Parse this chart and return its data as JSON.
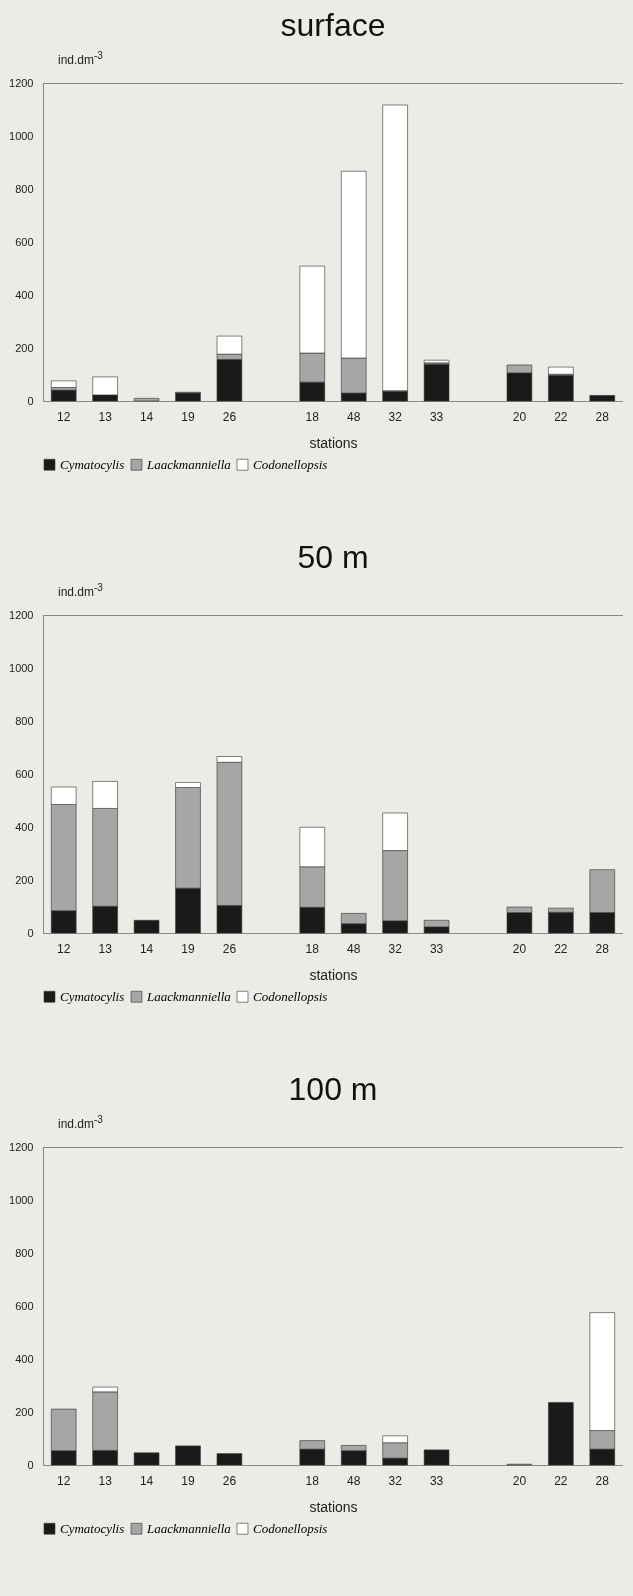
{
  "chart_data": [
    {
      "type": "bar",
      "title": "surface",
      "xlabel": "stations",
      "ylabel": "ind.dm$^{-3}$",
      "stacked": true,
      "legend": "bottom",
      "ylim": [
        0,
        1200
      ],
      "yticks": [
        0,
        200,
        400,
        600,
        800,
        1000,
        1200
      ],
      "categories": [
        "12",
        "13",
        "14",
        "19",
        "26",
        null,
        "18",
        "48",
        "32",
        "33",
        null,
        "20",
        "22",
        "28"
      ],
      "series": [
        {
          "name": "Cymatocylis",
          "color": "#1a1a1a",
          "values": [
            41,
            23,
            null,
            30,
            157,
            null,
            71,
            30,
            36,
            139,
            null,
            106,
            97,
            21
          ]
        },
        {
          "name": "Laackmanniella",
          "color": "#a6a6a6",
          "values": [
            10,
            null,
            10,
            3,
            20,
            null,
            110,
            132,
            3,
            5,
            null,
            30,
            4,
            null
          ]
        },
        {
          "name": "Codonellopsis",
          "color": "#ffffff",
          "values": [
            25,
            68,
            null,
            null,
            68,
            null,
            328,
            705,
            1078,
            10,
            null,
            null,
            27,
            null
          ]
        }
      ]
    },
    {
      "type": "bar",
      "title": "50 m",
      "xlabel": "stations",
      "ylabel": "ind.dm$^{-3}$",
      "stacked": true,
      "legend": "bottom",
      "ylim": [
        0,
        1200
      ],
      "yticks": [
        0,
        200,
        400,
        600,
        800,
        1000,
        1200
      ],
      "categories": [
        "12",
        "13",
        "14",
        "19",
        "26",
        null,
        "18",
        "48",
        "32",
        "33",
        null,
        "20",
        "22",
        "28"
      ],
      "series": [
        {
          "name": "Cymatocylis",
          "color": "#1a1a1a",
          "values": [
            84,
            101,
            48,
            169,
            104,
            null,
            97,
            35,
            46,
            23,
            null,
            77,
            78,
            77
          ]
        },
        {
          "name": "Laackmanniella",
          "color": "#a6a6a6",
          "values": [
            401,
            369,
            null,
            380,
            540,
            null,
            153,
            39,
            265,
            25,
            null,
            21,
            16,
            162
          ]
        },
        {
          "name": "Codonellopsis",
          "color": "#ffffff",
          "values": [
            66,
            102,
            null,
            19,
            22,
            null,
            149,
            null,
            142,
            null,
            null,
            null,
            null,
            null
          ]
        }
      ]
    },
    {
      "type": "bar",
      "title": "100 m",
      "xlabel": "stations",
      "ylabel": "ind.dm$^{-3}$",
      "stacked": true,
      "legend": "bottom",
      "ylim": [
        0,
        1200
      ],
      "yticks": [
        0,
        200,
        400,
        600,
        800,
        1000,
        1200
      ],
      "categories": [
        "12",
        "13",
        "14",
        "19",
        "26",
        null,
        "18",
        "48",
        "32",
        "33",
        null,
        "20",
        "22",
        "28"
      ],
      "series": [
        {
          "name": "Cymatocylis",
          "color": "#1a1a1a",
          "values": [
            54,
            55,
            46,
            72,
            43,
            null,
            60,
            54,
            26,
            57,
            null,
            null,
            236,
            60
          ]
        },
        {
          "name": "Laackmanniella",
          "color": "#a6a6a6",
          "values": [
            157,
            221,
            null,
            null,
            null,
            null,
            32,
            20,
            58,
            null,
            null,
            3,
            null,
            70
          ]
        },
        {
          "name": "Codonellopsis",
          "color": "#ffffff",
          "values": [
            null,
            18,
            null,
            null,
            null,
            null,
            null,
            null,
            26,
            null,
            null,
            null,
            null,
            445
          ]
        }
      ]
    }
  ]
}
